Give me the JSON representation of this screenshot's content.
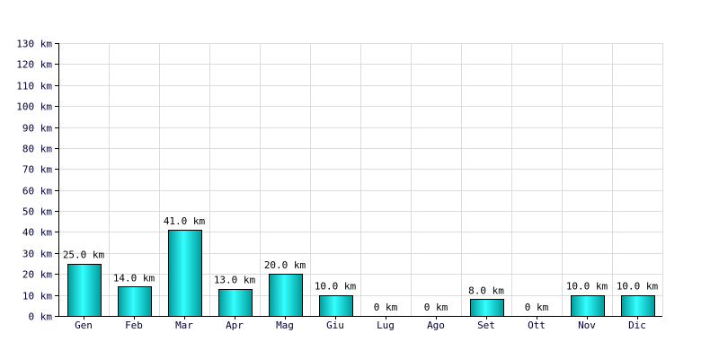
{
  "chart_data": {
    "type": "bar",
    "title": "",
    "xlabel": "",
    "ylabel": "",
    "categories": [
      "Gen",
      "Feb",
      "Mar",
      "Apr",
      "Mag",
      "Giu",
      "Lug",
      "Ago",
      "Set",
      "Ott",
      "Nov",
      "Dic"
    ],
    "values": [
      25.0,
      14.0,
      41.0,
      13.0,
      20.0,
      10.0,
      0,
      0,
      8.0,
      0,
      10.0,
      10.0
    ],
    "data_labels": [
      "25.0 km",
      "14.0 km",
      "41.0 km",
      "13.0 km",
      "20.0 km",
      "10.0 km",
      "0 km",
      "0 km",
      "8.0 km",
      "0 km",
      "10.0 km",
      "10.0 km"
    ],
    "ylim": [
      0,
      130
    ],
    "y_ticks": [
      0,
      10,
      20,
      30,
      40,
      50,
      60,
      70,
      80,
      90,
      100,
      110,
      120,
      130
    ],
    "y_tick_labels": [
      "0 km",
      "10 km",
      "20 km",
      "30 km",
      "40 km",
      "50 km",
      "60 km",
      "70 km",
      "80 km",
      "90 km",
      "100 km",
      "110 km",
      "120 km",
      "130 km"
    ],
    "grid": true,
    "legend": "none",
    "colors": {
      "bar_fill_light": "#33ffff",
      "bar_fill_dark": "#009999",
      "bar_outline": "#000000",
      "grid": "#dcdcdc",
      "tick_text": "#000033"
    }
  }
}
